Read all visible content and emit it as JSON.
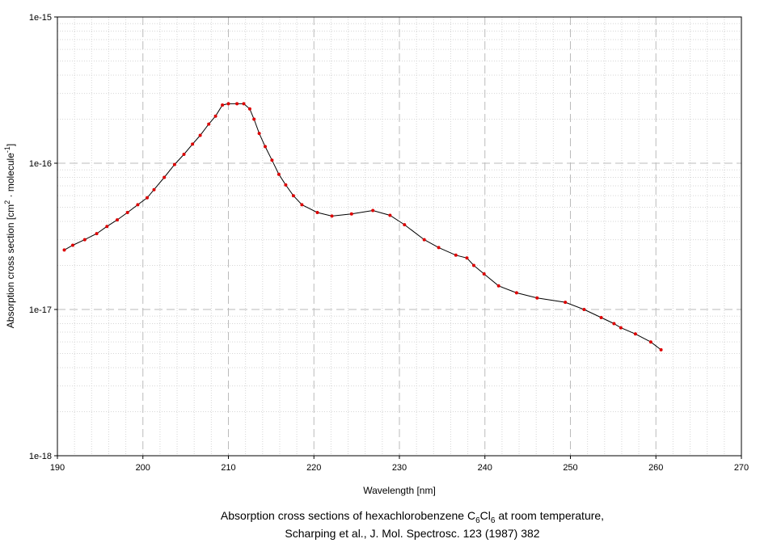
{
  "chart_data": {
    "type": "line",
    "xlabel": "Wavelength [nm]",
    "ylabel_main": "Absorption cross section [cm",
    "ylabel_sup1": "2",
    "ylabel_mid": " · molecule",
    "ylabel_sup2": "-1",
    "ylabel_end": "]",
    "xlim": [
      190,
      270
    ],
    "ylim": [
      1e-18,
      1e-15
    ],
    "yscale": "log",
    "grid": true,
    "x_ticks": [
      190,
      200,
      210,
      220,
      230,
      240,
      250,
      260,
      270
    ],
    "x_tick_labels": [
      "190",
      "200",
      "210",
      "220",
      "230",
      "240",
      "250",
      "260",
      "270"
    ],
    "y_ticks": [
      1e-18,
      1e-17,
      1e-16,
      1e-15
    ],
    "y_tick_labels": [
      "1e-18",
      "1e-17",
      "1e-16",
      "1e-15"
    ],
    "line_color": "#000000",
    "marker_color": "#dd0000",
    "series": [
      {
        "x": [
          190.8,
          191.8,
          193.2,
          194.6,
          195.8,
          197.0,
          198.2,
          199.4,
          200.5,
          201.3,
          202.5,
          203.7,
          204.8,
          205.8,
          206.7,
          207.7,
          208.5,
          209.3,
          210.0,
          211.0,
          211.8,
          212.5,
          213.0,
          213.6,
          214.3,
          215.1,
          215.9,
          216.7,
          217.6,
          218.6,
          220.4,
          222.1,
          224.4,
          226.9,
          228.9,
          230.6,
          232.9,
          234.6,
          236.6,
          237.9,
          238.7,
          239.9,
          241.6,
          243.7,
          246.1,
          249.4,
          251.6,
          253.6,
          255.1,
          255.9,
          257.6,
          259.4,
          260.6
        ],
        "y": [
          2.55e-17,
          2.75e-17,
          3e-17,
          3.3e-17,
          3.7e-17,
          4.1e-17,
          4.6e-17,
          5.2e-17,
          5.8e-17,
          6.6e-17,
          8e-17,
          9.8e-17,
          1.15e-16,
          1.35e-16,
          1.55e-16,
          1.85e-16,
          2.1e-16,
          2.5e-16,
          2.55e-16,
          2.55e-16,
          2.55e-16,
          2.35e-16,
          2e-16,
          1.6e-16,
          1.3e-16,
          1.05e-16,
          8.4e-17,
          7.1e-17,
          6e-17,
          5.2e-17,
          4.6e-17,
          4.35e-17,
          4.5e-17,
          4.75e-17,
          4.4e-17,
          3.8e-17,
          3e-17,
          2.65e-17,
          2.35e-17,
          2.25e-17,
          2e-17,
          1.75e-17,
          1.45e-17,
          1.3e-17,
          1.2e-17,
          1.12e-17,
          1e-17,
          8.8e-18,
          8e-18,
          7.5e-18,
          6.8e-18,
          6e-18,
          5.3e-18
        ]
      }
    ]
  },
  "caption": {
    "line1_prefix": "Absorption cross sections of hexachlorobenzene C",
    "line1_sub1": "6",
    "line1_mid": "Cl",
    "line1_sub2": "6",
    "line1_suffix": " at room temperature,",
    "line2": "Scharping et al., J. Mol. Spectrosc. 123 (1987) 382"
  }
}
